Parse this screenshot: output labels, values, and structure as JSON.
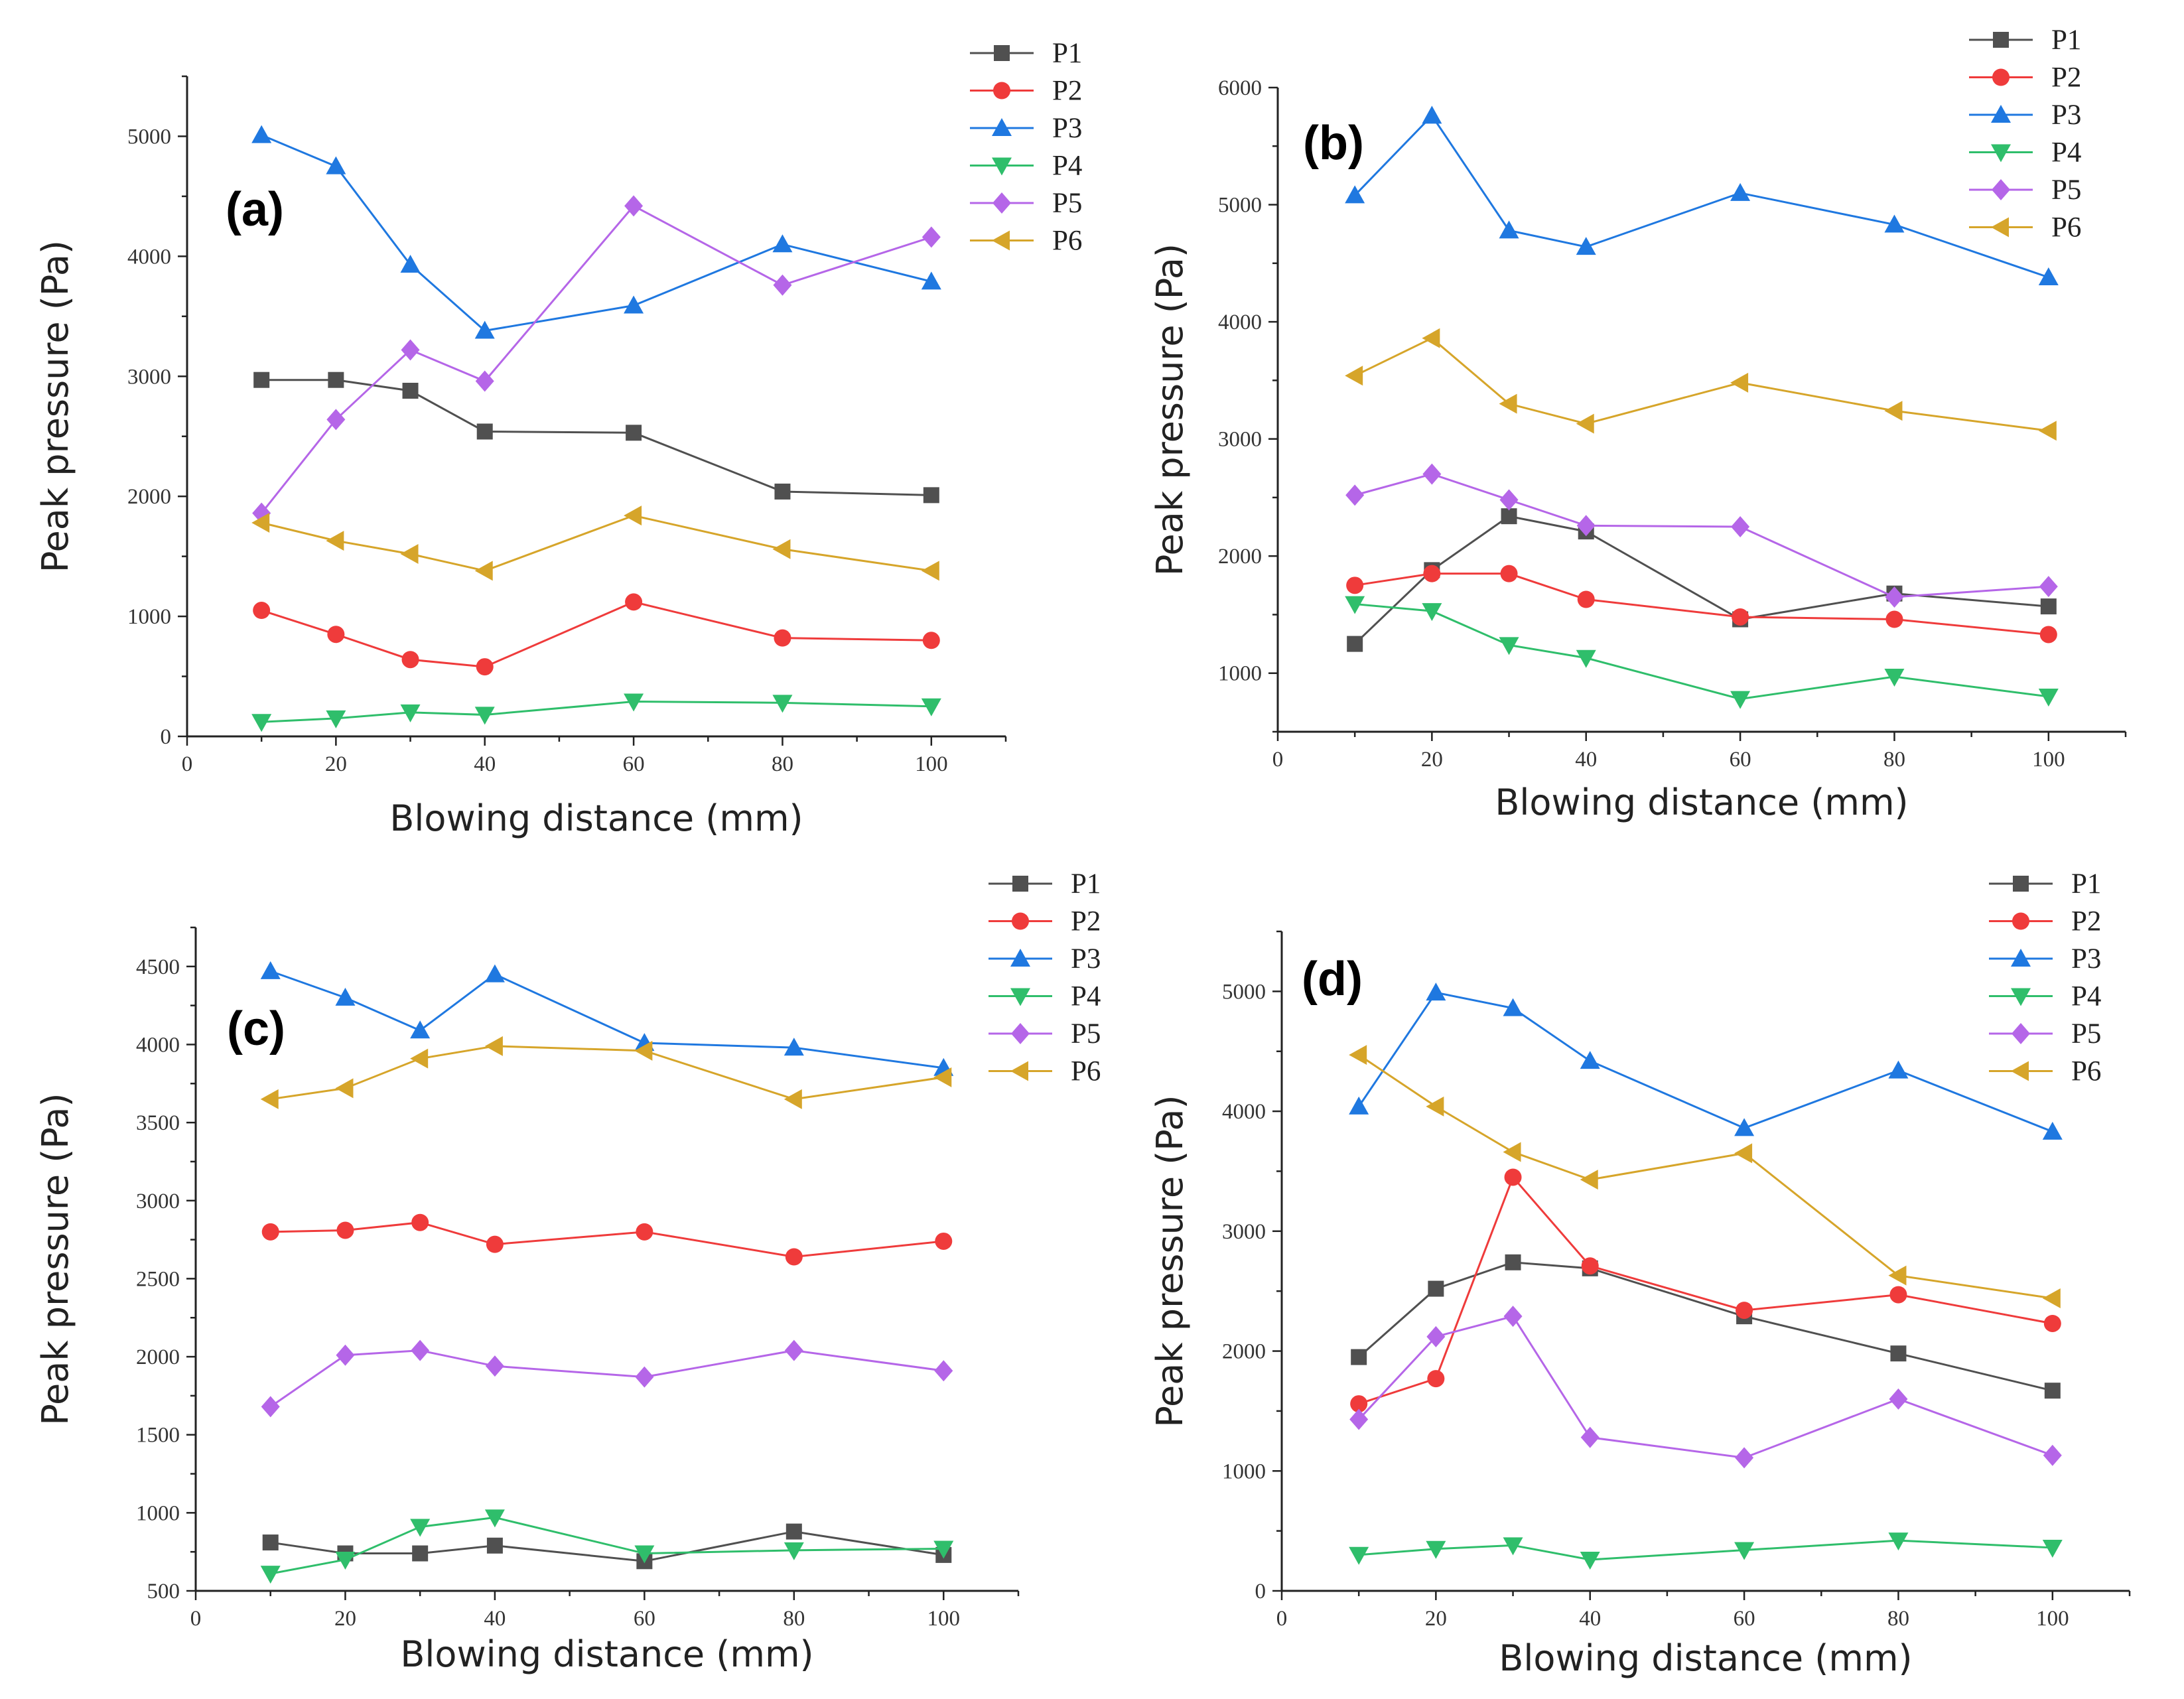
{
  "colors": {
    "P1": "#505050",
    "P2": "#ef3b3b",
    "P3": "#1f78e0",
    "P4": "#2fbe6b",
    "P5": "#b566e8",
    "P6": "#d6a52a"
  },
  "markers": {
    "P1": "square",
    "P2": "circle",
    "P3": "triangle-up",
    "P4": "triangle-down",
    "P5": "diamond",
    "P6": "triangle-left"
  },
  "chart_data": [
    {
      "type": "line",
      "panel_label": "(a)",
      "xlabel": "Blowing distance (mm)",
      "ylabel": "Peak pressure (Pa)",
      "xlim": [
        0,
        110
      ],
      "ylim": [
        0,
        5500
      ],
      "xticks": [
        0,
        20,
        40,
        60,
        80,
        100
      ],
      "xtick_labels": [
        "0",
        "20",
        "40",
        "60",
        "80",
        "100"
      ],
      "yticks": [
        0,
        1000,
        2000,
        3000,
        4000,
        5000
      ],
      "ytick_labels": [
        "0",
        "1000",
        "2000",
        "3000",
        "4000",
        "5000"
      ],
      "legend_position": "top-right",
      "x": [
        10,
        20,
        30,
        40,
        60,
        80,
        100
      ],
      "series": [
        {
          "name": "P1",
          "values": [
            2970,
            2970,
            2880,
            2540,
            2530,
            2040,
            2010
          ]
        },
        {
          "name": "P2",
          "values": [
            1050,
            850,
            640,
            580,
            1120,
            820,
            800
          ]
        },
        {
          "name": "P3",
          "values": [
            5010,
            4750,
            3930,
            3380,
            3590,
            4100,
            3790
          ]
        },
        {
          "name": "P4",
          "values": [
            120,
            150,
            200,
            180,
            290,
            280,
            250
          ]
        },
        {
          "name": "P5",
          "values": [
            1860,
            2640,
            3220,
            2960,
            4420,
            3760,
            4160
          ]
        },
        {
          "name": "P6",
          "values": [
            1780,
            1630,
            1520,
            1380,
            1840,
            1560,
            1380
          ]
        }
      ]
    },
    {
      "type": "line",
      "panel_label": "(b)",
      "xlabel": "Blowing distance (mm)",
      "ylabel": "Peak pressure (Pa)",
      "xlim": [
        0,
        110
      ],
      "ylim": [
        500,
        6000
      ],
      "xticks": [
        0,
        20,
        40,
        60,
        80,
        100
      ],
      "xtick_labels": [
        "0",
        "20",
        "40",
        "60",
        "80",
        "100"
      ],
      "yticks": [
        1000,
        2000,
        3000,
        4000,
        5000,
        6000
      ],
      "ytick_labels": [
        "1000",
        "2000",
        "3000",
        "4000",
        "5000",
        "6000"
      ],
      "legend_position": "top-right",
      "x": [
        10,
        20,
        30,
        40,
        60,
        80,
        100
      ],
      "series": [
        {
          "name": "P1",
          "values": [
            1250,
            1880,
            2340,
            2210,
            1460,
            1680,
            1570
          ]
        },
        {
          "name": "P2",
          "values": [
            1750,
            1850,
            1850,
            1630,
            1480,
            1460,
            1330
          ]
        },
        {
          "name": "P3",
          "values": [
            5080,
            5760,
            4780,
            4640,
            5100,
            4830,
            4380
          ]
        },
        {
          "name": "P4",
          "values": [
            1590,
            1530,
            1240,
            1130,
            780,
            970,
            800
          ]
        },
        {
          "name": "P5",
          "values": [
            2520,
            2700,
            2480,
            2260,
            2250,
            1650,
            1740
          ]
        },
        {
          "name": "P6",
          "values": [
            3540,
            3860,
            3300,
            3130,
            3480,
            3240,
            3070
          ]
        }
      ]
    },
    {
      "type": "line",
      "panel_label": "(c)",
      "xlabel": "Blowing distance (mm)",
      "ylabel": "Peak pressure (Pa)",
      "xlim": [
        0,
        110
      ],
      "ylim": [
        500,
        4750
      ],
      "xticks": [
        0,
        20,
        40,
        60,
        80,
        100
      ],
      "xtick_labels": [
        "0",
        "20",
        "40",
        "60",
        "80",
        "100"
      ],
      "yticks": [
        500,
        1000,
        1500,
        2000,
        2500,
        3000,
        3500,
        4000,
        4500
      ],
      "ytick_labels": [
        "500",
        "1000",
        "1500",
        "2000",
        "2500",
        "3000",
        "3500",
        "4000",
        "4500"
      ],
      "legend_position": "top-right",
      "x": [
        10,
        20,
        30,
        40,
        60,
        80,
        100
      ],
      "series": [
        {
          "name": "P1",
          "values": [
            810,
            740,
            740,
            790,
            690,
            880,
            730
          ]
        },
        {
          "name": "P2",
          "values": [
            2800,
            2810,
            2860,
            2720,
            2800,
            2640,
            2740
          ]
        },
        {
          "name": "P3",
          "values": [
            4470,
            4300,
            4090,
            4450,
            4010,
            3980,
            3850
          ]
        },
        {
          "name": "P4",
          "values": [
            610,
            700,
            910,
            970,
            740,
            760,
            770
          ]
        },
        {
          "name": "P5",
          "values": [
            1680,
            2010,
            2040,
            1940,
            1870,
            2040,
            1910
          ]
        },
        {
          "name": "P6",
          "values": [
            3650,
            3720,
            3910,
            3990,
            3960,
            3650,
            3790
          ]
        }
      ]
    },
    {
      "type": "line",
      "panel_label": "(d)",
      "xlabel": "Blowing distance (mm)",
      "ylabel": "Peak pressure (Pa)",
      "xlim": [
        0,
        110
      ],
      "ylim": [
        0,
        5500
      ],
      "xticks": [
        0,
        20,
        40,
        60,
        80,
        100
      ],
      "xtick_labels": [
        "0",
        "20",
        "40",
        "60",
        "80",
        "100"
      ],
      "yticks": [
        0,
        1000,
        2000,
        3000,
        4000,
        5000
      ],
      "ytick_labels": [
        "0",
        "1000",
        "2000",
        "3000",
        "4000",
        "5000"
      ],
      "legend_position": "top-right",
      "x": [
        10,
        20,
        30,
        40,
        60,
        80,
        100
      ],
      "series": [
        {
          "name": "P1",
          "values": [
            1950,
            2520,
            2740,
            2690,
            2290,
            1980,
            1670
          ]
        },
        {
          "name": "P2",
          "values": [
            1560,
            1770,
            3450,
            2710,
            2340,
            2470,
            2230
          ]
        },
        {
          "name": "P3",
          "values": [
            4040,
            4990,
            4860,
            4420,
            3860,
            4340,
            3830
          ]
        },
        {
          "name": "P4",
          "values": [
            300,
            350,
            380,
            260,
            340,
            420,
            360
          ]
        },
        {
          "name": "P5",
          "values": [
            1430,
            2120,
            2290,
            1280,
            1110,
            1600,
            1130
          ]
        },
        {
          "name": "P6",
          "values": [
            4470,
            4040,
            3660,
            3430,
            3650,
            2630,
            2440
          ]
        }
      ]
    }
  ]
}
